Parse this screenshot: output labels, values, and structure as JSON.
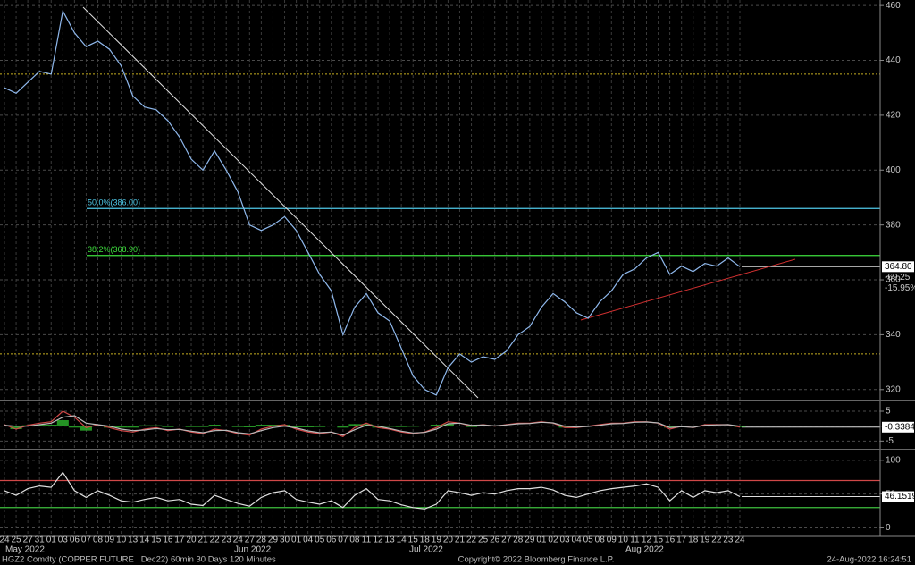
{
  "chart_data": [
    {
      "type": "line",
      "categories": [
        "24",
        "25",
        "27",
        "31",
        "01",
        "03",
        "06",
        "07",
        "08",
        "09",
        "10",
        "13",
        "14",
        "15",
        "16",
        "17",
        "20",
        "21",
        "22",
        "23",
        "24",
        "27",
        "28",
        "29",
        "30",
        "01",
        "04",
        "05",
        "06",
        "07",
        "08",
        "11",
        "12",
        "13",
        "14",
        "15",
        "18",
        "19",
        "20",
        "21",
        "22",
        "25",
        "26",
        "27",
        "28",
        "29",
        "01",
        "02",
        "03",
        "04",
        "05",
        "08",
        "09",
        "10",
        "11",
        "12",
        "15",
        "16",
        "17",
        "18",
        "19",
        "22",
        "23",
        "24"
      ],
      "series": [
        {
          "color": "#8fb8ec",
          "values": [
            430,
            428,
            432,
            436,
            435,
            458,
            450,
            445,
            447,
            444,
            438,
            427,
            423,
            422,
            418,
            412,
            404,
            400,
            407,
            400,
            392,
            380,
            378,
            380,
            383,
            378,
            370,
            362,
            356,
            340,
            350,
            355,
            348,
            345,
            335,
            325,
            320,
            318,
            328,
            333,
            330,
            332,
            331,
            334,
            340,
            343,
            350,
            355,
            352,
            348,
            346,
            352,
            356,
            362,
            364,
            368,
            370,
            362,
            365,
            363,
            366,
            365,
            368,
            364.8
          ]
        }
      ],
      "ylim": [
        317,
        462
      ],
      "yticks": [
        320,
        340,
        360,
        380,
        400,
        420,
        440,
        460
      ],
      "grid": true,
      "levels": [
        {
          "value": 386,
          "label": "50.0%(386.00)",
          "color": "#4fc8e8"
        },
        {
          "value": 368.9,
          "label": "38.2%(368.90)",
          "color": "#3ee03e"
        }
      ],
      "reference_lines": [
        435,
        333
      ],
      "last": {
        "value": 364.8,
        "label": "364.80"
      },
      "annotations": [
        "-69.25",
        "-15.95%"
      ],
      "months": [
        "May 2022",
        "Jun 2022",
        "Jul 2022",
        "Aug 2022"
      ]
    },
    {
      "type": "line",
      "series": [
        {
          "style": "bar",
          "color": "#2db82d",
          "values": [
            0.2,
            -1,
            0.3,
            0.5,
            0.5,
            2,
            -0.5,
            -1.5,
            0,
            -0.5,
            -0.5,
            -0.5,
            0.3,
            0.3,
            -0.3,
            0.1,
            -0.3,
            -0.3,
            0.5,
            -0.1,
            -0.3,
            -0.4,
            0.5,
            0.5,
            0.5,
            -0.4,
            -0.4,
            -0.3,
            0,
            -0.5,
            0.7,
            0.7,
            -0.5,
            -0.2,
            -0.3,
            -0.2,
            0.1,
            0.5,
            0.7,
            0,
            -0.3,
            0.1,
            -0.1,
            0.1,
            0.2,
            0.1,
            0.2,
            -0.1,
            -0.5,
            -0.2,
            0.1,
            0.2,
            0.2,
            0.1,
            0.2,
            0.1,
            -0.1,
            -0.5,
            0.2,
            -0.1,
            0.2,
            0.1,
            0,
            -0.3
          ]
        },
        {
          "color": "#d04848",
          "values": [
            0.5,
            -1,
            0.3,
            1,
            1.5,
            5,
            3,
            -0.5,
            0.5,
            -0.5,
            -1.5,
            -2,
            -1,
            -0.5,
            -1.5,
            -1,
            -2,
            -2.5,
            -1,
            -1.5,
            -2.5,
            -3,
            -1,
            0,
            0.5,
            -1,
            -2,
            -2.5,
            -2,
            -3.5,
            -0.5,
            1,
            -0.5,
            -1,
            -2,
            -2.5,
            -2,
            -0.5,
            1.5,
            1,
            0,
            0.5,
            0,
            0.5,
            1,
            1,
            1.5,
            1,
            -0.5,
            -0.5,
            0,
            0.5,
            1,
            1,
            1.5,
            1.5,
            1,
            -1,
            0,
            -0.5,
            0.5,
            0.5,
            0.5,
            -0.3384
          ]
        },
        {
          "color": "#bbbbbb",
          "values": [
            0.3,
            0,
            0,
            0.5,
            1,
            3,
            3.5,
            1,
            0.5,
            0,
            -1,
            -1.5,
            -1.3,
            -0.8,
            -1.2,
            -1.1,
            -1.7,
            -2.2,
            -1.5,
            -1.4,
            -2.2,
            -2.6,
            -1.5,
            -0.5,
            0,
            -0.6,
            -1.6,
            -2.2,
            -2,
            -3,
            -1.2,
            0.3,
            0,
            -0.8,
            -1.7,
            -2.3,
            -2.1,
            -1,
            0.8,
            1,
            0.3,
            0.4,
            0.1,
            0.4,
            0.8,
            0.9,
            1.3,
            1.1,
            0,
            -0.3,
            -0.1,
            0.3,
            0.8,
            0.9,
            1.3,
            1.4,
            1.1,
            -0.5,
            -0.2,
            -0.4,
            0.3,
            0.4,
            0.5,
            0
          ]
        }
      ],
      "ylim": [
        -7,
        8
      ],
      "yticks": [
        -5,
        0,
        5
      ],
      "grid": true,
      "last": {
        "value": -0.3384,
        "label": "-0.3384"
      }
    },
    {
      "type": "line",
      "series": [
        {
          "color": "#e0e0e0",
          "values": [
            55,
            48,
            58,
            62,
            60,
            82,
            55,
            45,
            55,
            48,
            40,
            38,
            42,
            45,
            40,
            42,
            35,
            33,
            48,
            42,
            36,
            32,
            45,
            52,
            55,
            42,
            38,
            35,
            40,
            30,
            48,
            58,
            42,
            40,
            34,
            30,
            28,
            35,
            55,
            52,
            48,
            52,
            50,
            55,
            58,
            58,
            60,
            56,
            48,
            45,
            50,
            55,
            58,
            60,
            62,
            65,
            60,
            40,
            55,
            45,
            55,
            52,
            55,
            46.1519
          ]
        }
      ],
      "ylim": [
        -10,
        113
      ],
      "yticks": [
        0,
        50,
        100
      ],
      "grid": true,
      "levels": [
        {
          "value": 70,
          "color": "#d04848"
        },
        {
          "value": 30,
          "color": "#3ec03e"
        }
      ],
      "last": {
        "value": 46.1519,
        "label": "46.1519"
      }
    }
  ],
  "footer": {
    "left": "HGZ2 Comdty (COPPER FUTURE   Dec22) 60min 30 Days 120 Minutes",
    "center": "Copyright© 2022 Bloomberg Finance L.P.",
    "right": "24-Aug-2022 16:24:51"
  }
}
